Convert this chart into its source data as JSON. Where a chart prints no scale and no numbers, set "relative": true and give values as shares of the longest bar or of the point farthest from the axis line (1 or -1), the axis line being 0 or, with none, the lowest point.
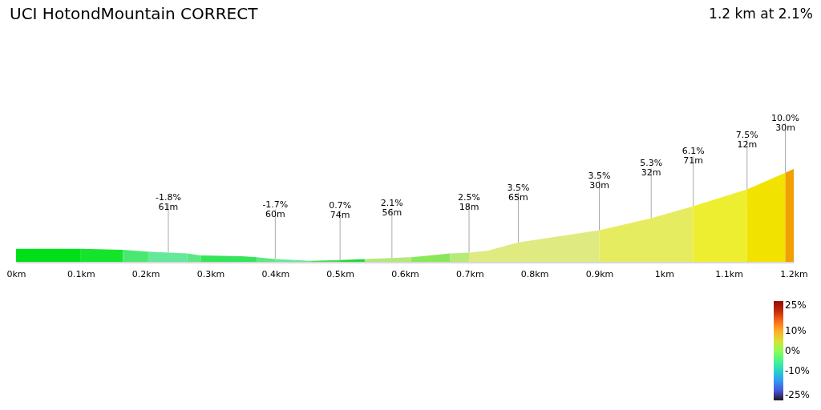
{
  "chart_data": {
    "type": "area",
    "title": "UCI HotondMountain CORRECT",
    "subtitle": "1.2 km at 2.1%",
    "relative": true,
    "xlim": [
      0,
      1.2
    ],
    "xticks": [
      {
        "value": 0,
        "label": "0km"
      },
      {
        "value": 0.1,
        "label": "0.1km"
      },
      {
        "value": 0.2,
        "label": "0.2km"
      },
      {
        "value": 0.3,
        "label": "0.3km"
      },
      {
        "value": 0.4,
        "label": "0.4km"
      },
      {
        "value": 0.5,
        "label": "0.5km"
      },
      {
        "value": 0.6,
        "label": "0.6km"
      },
      {
        "value": 0.7,
        "label": "0.7km"
      },
      {
        "value": 0.8,
        "label": "0.8km"
      },
      {
        "value": 0.9,
        "label": "0.9km"
      },
      {
        "value": 1,
        "label": "1km"
      },
      {
        "value": 1.1,
        "label": "1.1km"
      },
      {
        "value": 1.2,
        "label": "1.2km"
      }
    ],
    "series": [
      {
        "color": "#00e01a",
        "x": [
          0,
          0.1
        ],
        "values": [
          0.14,
          0.14
        ]
      },
      {
        "color": "#14e52a",
        "x": [
          0.1,
          0.165
        ],
        "values": [
          0.14,
          0.13
        ]
      },
      {
        "color": "#4ae872",
        "x": [
          0.165,
          0.204
        ],
        "values": [
          0.13,
          0.11
        ]
      },
      {
        "color": "#66e89a",
        "x": [
          0.204,
          0.264
        ],
        "values": [
          0.11,
          0.09
        ]
      },
      {
        "color": "#5ae882",
        "x": [
          0.264,
          0.285
        ],
        "values": [
          0.09,
          0.07
        ]
      },
      {
        "color": "#36e45a",
        "x": [
          0.285,
          0.349,
          0.371
        ],
        "values": [
          0.07,
          0.06,
          0.05
        ]
      },
      {
        "color": "#5ae882",
        "x": [
          0.371,
          0.4
        ],
        "values": [
          0.05,
          0.03
        ]
      },
      {
        "color": "#66e89a",
        "x": [
          0.4,
          0.455
        ],
        "values": [
          0.03,
          0.01
        ]
      },
      {
        "color": "#3ce050",
        "x": [
          0.455,
          0.5
        ],
        "values": [
          0.01,
          0.02
        ]
      },
      {
        "color": "#22d83a",
        "x": [
          0.5,
          0.538
        ],
        "values": [
          0.02,
          0.03
        ]
      },
      {
        "color": "#b4e87a",
        "x": [
          0.538,
          0.58,
          0.61
        ],
        "values": [
          0.03,
          0.04,
          0.05
        ]
      },
      {
        "color": "#88e85a",
        "x": [
          0.61,
          0.67
        ],
        "values": [
          0.05,
          0.09
        ]
      },
      {
        "color": "#b8ea7a",
        "x": [
          0.67,
          0.699
        ],
        "values": [
          0.09,
          0.1
        ]
      },
      {
        "color": "#dfea80",
        "x": [
          0.699,
          0.728,
          0.775,
          0.9
        ],
        "values": [
          0.1,
          0.12,
          0.21,
          0.34
        ]
      },
      {
        "color": "#e6ec60",
        "x": [
          0.9,
          0.98,
          1.045
        ],
        "values": [
          0.34,
          0.47,
          0.6
        ]
      },
      {
        "color": "#eeee30",
        "x": [
          1.045,
          1.128
        ],
        "values": [
          0.6,
          0.78
        ]
      },
      {
        "color": "#f2e200",
        "x": [
          1.128,
          1.187
        ],
        "values": [
          0.78,
          0.96
        ]
      },
      {
        "color": "#f0a000",
        "x": [
          1.187,
          1.2
        ],
        "values": [
          0.96,
          1
        ]
      }
    ],
    "annotations": [
      {
        "text": "-1.8%\n61m",
        "x": 0.235,
        "y": 0.1
      },
      {
        "text": "-1.7%\n60m",
        "x": 0.4,
        "y": 0.03
      },
      {
        "text": "0.7%\n74m",
        "x": 0.5,
        "y": 0.02
      },
      {
        "text": "2.1%\n56m",
        "x": 0.58,
        "y": 0.04
      },
      {
        "text": "2.5%\n18m",
        "x": 0.699,
        "y": 0.1
      },
      {
        "text": "3.5%\n65m",
        "x": 0.775,
        "y": 0.21
      },
      {
        "text": "3.5%\n30m",
        "x": 0.9,
        "y": 0.34
      },
      {
        "text": "5.3%\n32m",
        "x": 0.98,
        "y": 0.47
      },
      {
        "text": "6.1%\n71m",
        "x": 1.045,
        "y": 0.6
      },
      {
        "text": "7.5%\n12m",
        "x": 1.128,
        "y": 0.78
      },
      {
        "text": "10.0%\n30m",
        "x": 1.187,
        "y": 0.96
      }
    ],
    "clim": [
      -25,
      25
    ],
    "cticks": [
      {
        "value": 25,
        "label": "25%"
      },
      {
        "value": 10,
        "label": "10%"
      },
      {
        "value": 0,
        "label": "0%"
      },
      {
        "value": -10,
        "label": "-10%"
      },
      {
        "value": -25,
        "label": "-25%"
      }
    ]
  }
}
